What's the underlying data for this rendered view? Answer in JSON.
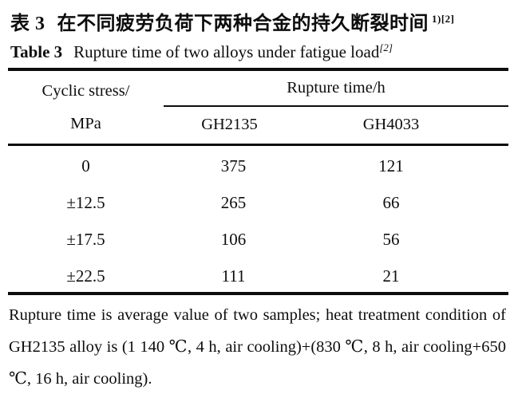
{
  "page": {
    "background": "#ffffff",
    "text_color": "#0d0d0d"
  },
  "captions": {
    "zh": {
      "label": "表 3",
      "text": "在不同疲劳负荷下两种合金的持久断裂时间",
      "superscript": "1)[2]"
    },
    "en": {
      "label": "Table 3",
      "text": "Rupture time of two alloys under fatigue load",
      "superscript": "[2]"
    }
  },
  "table": {
    "stress_header_line1": "Cyclic stress/",
    "stress_header_line2": "MPa",
    "group_header": "Rupture time/h",
    "sub_header_gh2135": "GH2135",
    "sub_header_gh4033": "GH4033",
    "rows": [
      {
        "stress": "0",
        "gh2135": "375",
        "gh4033": "121"
      },
      {
        "stress": "±12.5",
        "gh2135": "265",
        "gh4033": "66"
      },
      {
        "stress": "±17.5",
        "gh2135": "106",
        "gh4033": "56"
      },
      {
        "stress": "±22.5",
        "gh2135": "111",
        "gh4033": "21"
      }
    ]
  },
  "footnote": "Rupture time is average value of two samples; heat treatment condition of GH2135 alloy is (1 140 ℃, 4 h, air cooling)+(830 ℃, 8 h, air cooling+650 ℃, 16 h, air cooling).",
  "chart_data": {
    "type": "table",
    "title": "Table 3 Rupture time of two alloys under fatigue load",
    "title_zh": "表3 在不同疲劳负荷下两种合金的持久断裂时间",
    "columns": [
      "Cyclic stress/MPa",
      "Rupture time/h GH2135",
      "Rupture time/h GH4033"
    ],
    "rows": [
      [
        "0",
        375,
        121
      ],
      [
        "±12.5",
        265,
        66
      ],
      [
        "±17.5",
        106,
        56
      ],
      [
        "±22.5",
        111,
        21
      ]
    ]
  }
}
